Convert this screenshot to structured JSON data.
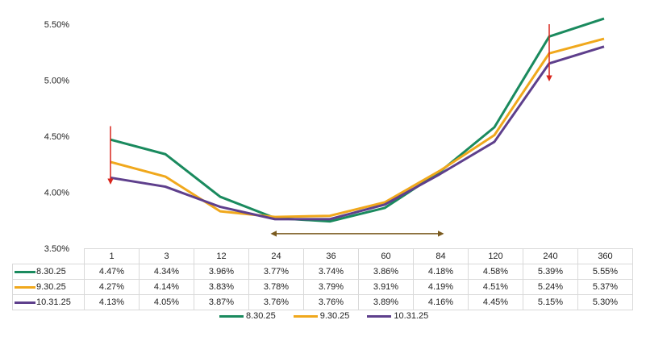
{
  "chart_data": {
    "type": "line",
    "title": "",
    "xlabel": "",
    "ylabel": "",
    "categories": [
      "1",
      "3",
      "12",
      "24",
      "36",
      "60",
      "84",
      "120",
      "240",
      "360"
    ],
    "yticks": [
      "5.50%",
      "5.00%",
      "4.50%",
      "4.00%",
      "3.50%"
    ],
    "ylim": [
      3.5,
      5.5
    ],
    "grid": false,
    "legend_placement": "bottom",
    "series": [
      {
        "name": "8.30.25",
        "color": "#1a8a5e",
        "values": [
          4.47,
          4.34,
          3.96,
          3.77,
          3.74,
          3.86,
          4.18,
          4.58,
          5.39,
          5.55
        ],
        "labels": [
          "4.47%",
          "4.34%",
          "3.96%",
          "3.77%",
          "3.74%",
          "3.86%",
          "4.18%",
          "4.58%",
          "5.39%",
          "5.55%"
        ]
      },
      {
        "name": "9.30.25",
        "color": "#f0a81c",
        "values": [
          4.27,
          4.14,
          3.83,
          3.78,
          3.79,
          3.91,
          4.19,
          4.51,
          5.24,
          5.37
        ],
        "labels": [
          "4.27%",
          "4.14%",
          "3.83%",
          "3.78%",
          "3.79%",
          "3.91%",
          "4.19%",
          "4.51%",
          "5.24%",
          "5.37%"
        ]
      },
      {
        "name": "10.31.25",
        "color": "#5e3f8c",
        "values": [
          4.13,
          4.05,
          3.87,
          3.76,
          3.76,
          3.89,
          4.16,
          4.45,
          5.15,
          5.3
        ],
        "labels": [
          "4.13%",
          "4.05%",
          "3.87%",
          "3.76%",
          "3.76%",
          "3.89%",
          "4.16%",
          "4.45%",
          "5.15%",
          "5.30%"
        ]
      }
    ],
    "annotations": [
      {
        "type": "arrow-down",
        "color": "#d9251c",
        "at": "1",
        "from": 4.59,
        "to": 4.08
      },
      {
        "type": "arrow-down",
        "color": "#d9251c",
        "at": "240",
        "from": 5.5,
        "to": 5.0
      },
      {
        "type": "double-arrow-horizontal",
        "color": "#7a5a1e",
        "from": "24",
        "to": "84",
        "y": 3.76
      }
    ]
  }
}
